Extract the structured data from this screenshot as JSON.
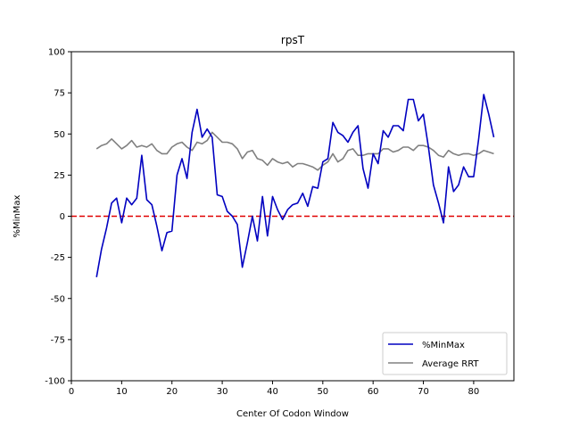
{
  "chart_data": {
    "type": "line",
    "title": "rpsT",
    "xlabel": "Center Of Codon Window",
    "ylabel": "%MinMax",
    "xlim": [
      0,
      88
    ],
    "ylim": [
      -100,
      100
    ],
    "xticks": [
      0,
      10,
      20,
      30,
      40,
      50,
      60,
      70,
      80
    ],
    "yticks": [
      -100,
      -75,
      -50,
      -25,
      0,
      25,
      50,
      75,
      100
    ],
    "grid": false,
    "legend_position": "lower-right",
    "x": [
      5,
      6,
      7,
      8,
      9,
      10,
      11,
      12,
      13,
      14,
      15,
      16,
      17,
      18,
      19,
      20,
      21,
      22,
      23,
      24,
      25,
      26,
      27,
      28,
      29,
      30,
      31,
      32,
      33,
      34,
      35,
      36,
      37,
      38,
      39,
      40,
      41,
      42,
      43,
      44,
      45,
      46,
      47,
      48,
      49,
      50,
      51,
      52,
      53,
      54,
      55,
      56,
      57,
      58,
      59,
      60,
      61,
      62,
      63,
      64,
      65,
      66,
      67,
      68,
      69,
      70,
      71,
      72,
      73,
      74,
      75,
      76,
      77,
      78,
      79,
      80,
      81,
      82,
      83,
      84
    ],
    "series": [
      {
        "name": "%MinMax",
        "color": "#0000c0",
        "values": [
          -37,
          -20,
          -7,
          8,
          11,
          -4,
          11,
          7,
          11,
          37,
          10,
          7,
          -6,
          -21,
          -10,
          -9,
          25,
          35,
          23,
          51,
          65,
          48,
          53,
          48,
          13,
          12,
          3,
          0,
          -5,
          -31,
          -16,
          0,
          -15,
          12,
          -12,
          12,
          4,
          -2,
          4,
          7,
          8,
          14,
          6,
          18,
          17,
          33,
          35,
          57,
          51,
          49,
          45,
          51,
          55,
          29,
          17,
          38,
          32,
          52,
          48,
          55,
          55,
          52,
          71,
          71,
          58,
          62,
          42,
          19,
          8,
          -4,
          30,
          15,
          19,
          30,
          24,
          24,
          47,
          74,
          62,
          48
        ]
      },
      {
        "name": "Average RRT",
        "color": "#808080",
        "values": [
          41,
          43,
          44,
          47,
          44,
          41,
          43,
          46,
          42,
          43,
          42,
          44,
          40,
          38,
          38,
          42,
          44,
          45,
          42,
          40,
          45,
          44,
          46,
          51,
          48,
          45,
          45,
          44,
          41,
          35,
          39,
          40,
          35,
          34,
          31,
          35,
          33,
          32,
          33,
          30,
          32,
          32,
          31,
          30,
          28,
          31,
          33,
          38,
          33,
          35,
          40,
          41,
          37,
          37,
          38,
          38,
          38,
          41,
          41,
          39,
          40,
          42,
          42,
          40,
          43,
          43,
          42,
          40,
          37,
          36,
          40,
          38,
          37,
          38,
          38,
          37,
          38,
          40,
          39,
          38
        ]
      }
    ],
    "reference_lines": [
      {
        "y": 0,
        "color": "#e00000",
        "style": "dashed"
      }
    ]
  }
}
